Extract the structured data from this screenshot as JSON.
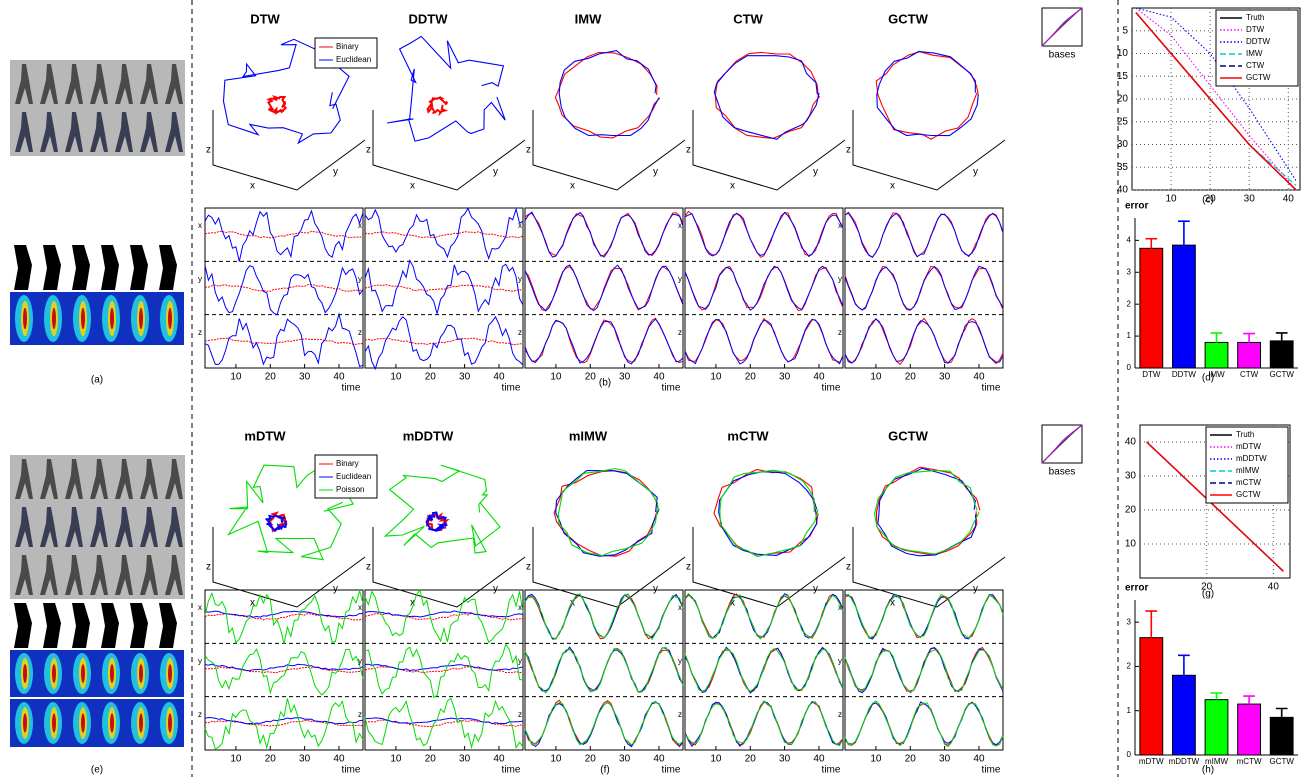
{
  "figure": {
    "panel_labels": [
      "(a)",
      "(b)",
      "(c)",
      "(d)",
      "(e)",
      "(f)",
      "(g)",
      "(h)"
    ],
    "row1_titles": [
      "DTW",
      "DDTW",
      "IMW",
      "CTW",
      "GCTW"
    ],
    "row2_titles": [
      "mDTW",
      "mDDTW",
      "mIMW",
      "mCTW",
      "GCTW"
    ],
    "legend_row1": [
      "Binary",
      "Euclidean"
    ],
    "legend_row2": [
      "Binary",
      "Euclidean",
      "Poisson"
    ],
    "axis_names": [
      "x",
      "y",
      "z"
    ],
    "bases": "bases",
    "time_label": "time",
    "time_ticks": [
      10,
      20,
      30,
      40
    ]
  },
  "chart_data": [
    {
      "type": "line",
      "x": [
        1,
        10,
        20,
        30,
        42
      ],
      "xlim": [
        0,
        43
      ],
      "ylim": [
        0,
        40
      ],
      "y_inverted": true,
      "xticks": [
        10,
        20,
        30,
        40
      ],
      "yticks": [
        5,
        10,
        15,
        20,
        25,
        30,
        35,
        40
      ],
      "grid": true,
      "legend": "upper right",
      "series": [
        {
          "name": "Truth",
          "color": "#000000",
          "style": "solid",
          "values": [
            1,
            10,
            20,
            30,
            40
          ]
        },
        {
          "name": "DTW",
          "color": "#ff00ff",
          "style": "dotted",
          "values": [
            0,
            6,
            17,
            28,
            40
          ]
        },
        {
          "name": "DDTW",
          "color": "#0000ff",
          "style": "dotted",
          "values": [
            0,
            2,
            10,
            22,
            38
          ]
        },
        {
          "name": "IMW",
          "color": "#00cccc",
          "style": "dashed",
          "values": [
            1,
            10,
            20,
            30,
            39
          ]
        },
        {
          "name": "CTW",
          "color": "#000080",
          "style": "dashed",
          "values": [
            1,
            10,
            20,
            30,
            40
          ]
        },
        {
          "name": "GCTW",
          "color": "#ff0000",
          "style": "solid",
          "values": [
            1,
            10,
            20,
            30,
            40
          ]
        }
      ]
    },
    {
      "type": "line",
      "x": [
        2,
        43
      ],
      "xlim": [
        0,
        45
      ],
      "ylim": [
        0,
        45
      ],
      "y_inverted": false,
      "xticks": [
        20,
        40
      ],
      "yticks": [
        10,
        20,
        30,
        40
      ],
      "grid": true,
      "legend": "upper right",
      "series": [
        {
          "name": "Truth",
          "color": "#000000",
          "style": "solid",
          "values": [
            40,
            2
          ]
        },
        {
          "name": "mDTW",
          "color": "#ff00ff",
          "style": "dotted",
          "values": [
            40,
            2
          ]
        },
        {
          "name": "mDDTW",
          "color": "#0000ff",
          "style": "dotted",
          "values": [
            40,
            2
          ]
        },
        {
          "name": "mIMW",
          "color": "#00cccc",
          "style": "dashed",
          "values": [
            40,
            2
          ]
        },
        {
          "name": "mCTW",
          "color": "#000080",
          "style": "dashed",
          "values": [
            40,
            2
          ]
        },
        {
          "name": "GCTW",
          "color": "#ff0000",
          "style": "solid",
          "values": [
            40,
            2
          ]
        }
      ]
    },
    {
      "type": "bar",
      "ylabel": "error",
      "categories": [
        "DTW",
        "DDTW",
        "IMW",
        "CTW",
        "GCTW"
      ],
      "values": [
        3.75,
        3.85,
        0.8,
        0.8,
        0.85
      ],
      "errors": [
        0.3,
        0.75,
        0.3,
        0.28,
        0.25
      ],
      "colors": [
        "#ff0000",
        "#0000ff",
        "#00ff00",
        "#ff00ff",
        "#000000"
      ],
      "ylim": [
        0,
        4.7
      ],
      "yticks": [
        0,
        1,
        2,
        3,
        4
      ]
    },
    {
      "type": "bar",
      "ylabel": "error",
      "categories": [
        "mDTW",
        "mDDTW",
        "mIMW",
        "mCTW",
        "GCTW"
      ],
      "values": [
        2.65,
        1.8,
        1.25,
        1.15,
        0.85
      ],
      "errors": [
        0.6,
        0.45,
        0.15,
        0.18,
        0.2
      ],
      "colors": [
        "#ff0000",
        "#0000ff",
        "#00ff00",
        "#ff00ff",
        "#000000"
      ],
      "ylim": [
        0,
        3.5
      ],
      "yticks": [
        0,
        1,
        2,
        3
      ]
    }
  ]
}
